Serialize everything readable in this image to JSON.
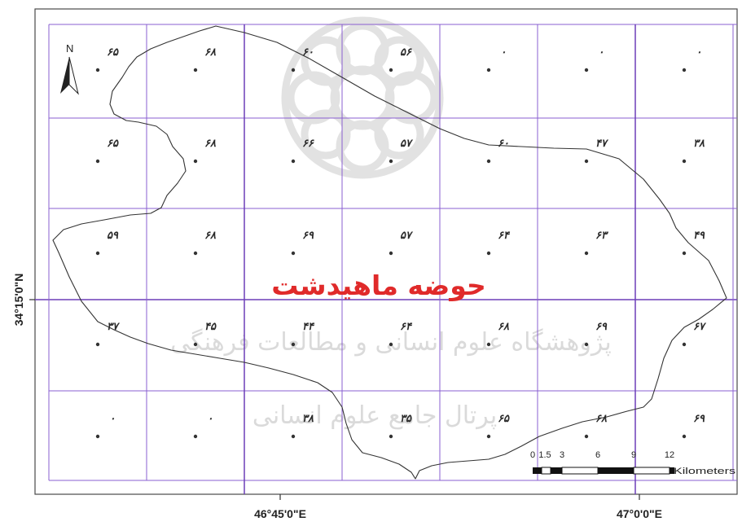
{
  "map": {
    "basin_label": "حوضه ماهیدشت",
    "axis": {
      "left_lat": "34°15'0\"N",
      "bottom_lon_1": "46°45'0\"E",
      "bottom_lon_2": "47°0'0\"E"
    },
    "north_label": "N",
    "scale": {
      "ticks": [
        "0",
        "1.5",
        "3",
        "6",
        "9",
        "12"
      ],
      "unit": "Kilometers"
    },
    "watermark": {
      "line1": "پژوهشگاه علوم انسانی و مطالعات فرهنگی",
      "line2": "پرتال جامع علوم انسانی"
    },
    "grid_values": [
      [
        "۶۵",
        "۶۸",
        "۶۰",
        "۵۶",
        "۰",
        "۰",
        "۰"
      ],
      [
        "۶۵",
        "۶۸",
        "۶۶",
        "۵۷",
        "۶۰",
        "۴۷",
        "۳۸"
      ],
      [
        "۵۹",
        "۶۸",
        "۶۹",
        "۵۷",
        "۶۴",
        "۶۳",
        "۴۹"
      ],
      [
        "۳۷",
        "۴۵",
        "۴۴",
        "۶۴",
        "۶۸",
        "۶۹",
        "۶۷"
      ],
      [
        "۰",
        "۰",
        "۳۸",
        "۳۵",
        "۶۵",
        "۶۸",
        "۶۹"
      ]
    ],
    "colors": {
      "grid": "#8a5fd0",
      "basin_label": "#e02a2a",
      "boundary": "#333333"
    }
  }
}
